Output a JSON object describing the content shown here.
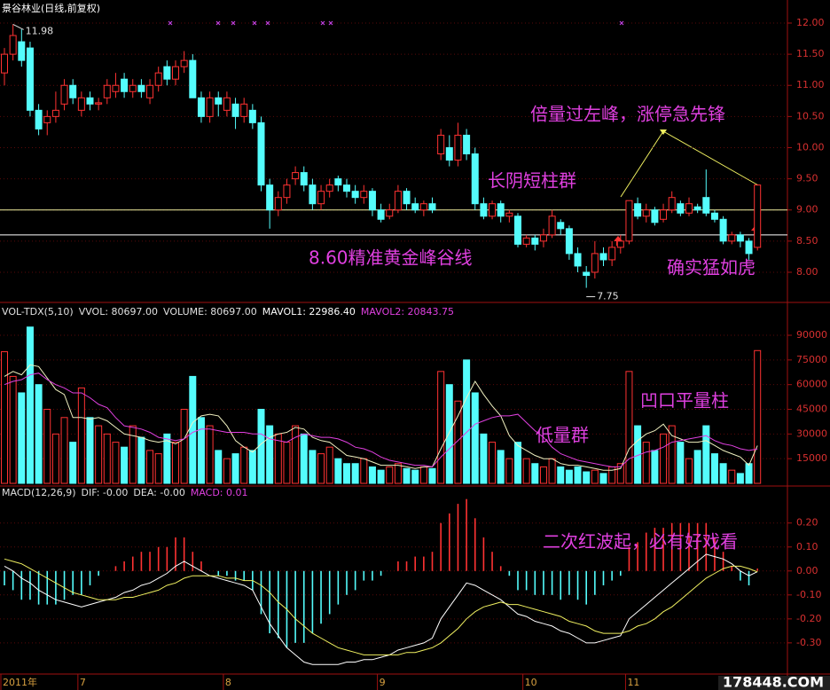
{
  "chart_data": [
    {
      "type": "candlestick",
      "title": "景谷林业(日线,前复权)",
      "title_color": "#ffffff",
      "up_color": "#ff3232",
      "down_color": "#54fcfc",
      "open": [
        11.2,
        11.5,
        11.7,
        11.6,
        10.6,
        10.4,
        10.5,
        10.7,
        11.0,
        10.6,
        10.8,
        10.7,
        10.8,
        10.9,
        11.1,
        10.9,
        11.0,
        10.8,
        11.0,
        11.3,
        11.1,
        11.3,
        11.4,
        10.8,
        10.5,
        10.8,
        10.6,
        10.7,
        10.5,
        10.6,
        10.4,
        9.4,
        9.0,
        9.2,
        9.5,
        9.6,
        9.4,
        9.1,
        9.3,
        9.5,
        9.4,
        9.3,
        9.2,
        9.3,
        9.0,
        8.9,
        9.0,
        9.3,
        9.1,
        9.0,
        9.1,
        9.9,
        10.0,
        9.8,
        10.2,
        9.9,
        9.1,
        8.9,
        9.1,
        8.9,
        8.9,
        8.45,
        8.55,
        8.5,
        8.6,
        8.8,
        8.7,
        8.3,
        8.0,
        8.0,
        8.3,
        8.2,
        8.4,
        8.5,
        9.1,
        8.9,
        9.0,
        8.85,
        9.0,
        9.1,
        8.95,
        9.05,
        9.2,
        8.95,
        8.85,
        8.5,
        8.6,
        8.5,
        8.4
      ],
      "high": [
        11.6,
        11.98,
        11.9,
        11.7,
        10.7,
        10.6,
        10.9,
        11.1,
        11.1,
        10.9,
        10.9,
        10.8,
        11.1,
        11.2,
        11.2,
        11.1,
        11.1,
        11.1,
        11.3,
        11.4,
        11.4,
        11.55,
        11.5,
        10.9,
        10.9,
        10.9,
        10.9,
        10.8,
        10.8,
        10.7,
        10.5,
        9.5,
        9.3,
        9.5,
        9.7,
        9.7,
        9.5,
        9.4,
        9.5,
        9.55,
        9.5,
        9.4,
        9.4,
        9.35,
        9.1,
        9.1,
        9.4,
        9.35,
        9.2,
        9.15,
        9.2,
        10.3,
        10.2,
        10.4,
        10.3,
        10.0,
        9.2,
        9.15,
        9.15,
        9.0,
        8.95,
        8.6,
        8.6,
        8.7,
        9.0,
        8.85,
        8.75,
        8.4,
        8.1,
        8.5,
        8.4,
        8.5,
        8.6,
        9.15,
        9.2,
        9.1,
        9.05,
        9.1,
        9.3,
        9.15,
        9.2,
        9.1,
        9.65,
        9.0,
        8.9,
        8.65,
        8.65,
        8.55,
        9.4
      ],
      "low": [
        11.0,
        11.4,
        11.3,
        10.5,
        10.2,
        10.2,
        10.4,
        10.6,
        10.7,
        10.5,
        10.6,
        10.6,
        10.7,
        10.8,
        10.8,
        10.8,
        10.8,
        10.7,
        10.9,
        11.0,
        11.0,
        11.2,
        10.8,
        10.4,
        10.4,
        10.5,
        10.5,
        10.3,
        10.4,
        10.3,
        9.3,
        8.7,
        8.9,
        9.1,
        9.4,
        9.3,
        9.0,
        9.0,
        9.2,
        9.3,
        9.2,
        9.1,
        9.1,
        8.9,
        8.8,
        8.85,
        8.95,
        9.0,
        8.95,
        8.9,
        8.95,
        9.8,
        9.7,
        9.7,
        9.8,
        9.0,
        8.85,
        8.85,
        8.8,
        8.8,
        8.4,
        8.4,
        8.35,
        8.4,
        8.55,
        8.6,
        8.2,
        8.0,
        7.75,
        7.9,
        8.1,
        8.1,
        8.3,
        8.45,
        8.85,
        8.8,
        8.75,
        8.8,
        8.95,
        8.9,
        8.9,
        8.95,
        8.9,
        8.8,
        8.45,
        8.45,
        8.4,
        8.2,
        8.35
      ],
      "close": [
        11.5,
        11.8,
        11.4,
        10.6,
        10.3,
        10.5,
        10.6,
        11.0,
        10.8,
        10.8,
        10.7,
        10.72,
        11.0,
        11.0,
        10.9,
        11.0,
        10.9,
        11.0,
        11.2,
        11.1,
        11.3,
        11.4,
        10.8,
        10.5,
        10.8,
        10.7,
        10.8,
        10.5,
        10.7,
        10.4,
        9.4,
        9.0,
        9.2,
        9.4,
        9.6,
        9.4,
        9.1,
        9.3,
        9.4,
        9.4,
        9.3,
        9.2,
        9.3,
        9.0,
        8.85,
        9.0,
        9.3,
        9.1,
        9.0,
        9.1,
        9.0,
        10.2,
        9.8,
        10.2,
        9.9,
        9.1,
        8.9,
        9.1,
        8.9,
        8.95,
        8.45,
        8.55,
        8.45,
        8.6,
        8.9,
        8.7,
        8.3,
        8.1,
        7.95,
        8.3,
        8.2,
        8.4,
        8.5,
        9.15,
        8.9,
        9.0,
        8.8,
        9.0,
        9.2,
        8.95,
        9.1,
        9.0,
        8.95,
        8.85,
        8.5,
        8.6,
        8.5,
        8.3,
        9.4
      ],
      "ylim": [
        7.53,
        12.37
      ],
      "yticks": [
        {
          "value": 8,
          "label": "8.00"
        },
        {
          "value": 8.5,
          "label": "8.50"
        },
        {
          "value": 9,
          "label": "9.00"
        },
        {
          "value": 9.5,
          "label": "9.50"
        },
        {
          "value": 10,
          "label": "10.00"
        },
        {
          "value": 10.5,
          "label": "10.50"
        },
        {
          "value": 11,
          "label": "11.00"
        },
        {
          "value": 11.5,
          "label": "11.50"
        },
        {
          "value": 12,
          "label": "12.00"
        }
      ],
      "hlines": [
        {
          "value": 9,
          "color": "#f0f0a0"
        },
        {
          "value": 8.6,
          "color": "#ffffff"
        }
      ],
      "annotations": [
        "倍量过左峰，涨停急先锋",
        "长阴短柱群",
        "8.60精准黄金峰谷线",
        "确实猛如虎"
      ]
    },
    {
      "type": "bar",
      "header": [
        {
          "text": "VOL-TDX(5,10)",
          "color": "#e0e0e0"
        },
        {
          "text": "VVOL: 80697.00",
          "color": "#e0e0e0"
        },
        {
          "text": "VOLUME: 80697.00",
          "color": "#e0e0e0"
        },
        {
          "text": "MAVOL1: 22986.40",
          "color": "#ffffff"
        },
        {
          "text": "MAVOL2: 20843.75",
          "color": "#e040e0"
        }
      ],
      "values": [
        80000,
        65000,
        55000,
        95000,
        60000,
        45000,
        30000,
        40000,
        25000,
        58000,
        40000,
        35000,
        30000,
        25000,
        22000,
        35000,
        28000,
        20000,
        18000,
        30000,
        25000,
        45000,
        65000,
        40000,
        35000,
        20000,
        15000,
        18000,
        22000,
        20000,
        45000,
        35000,
        30000,
        25000,
        35000,
        30000,
        20000,
        18000,
        22000,
        15000,
        12000,
        12000,
        15000,
        10000,
        8000,
        10000,
        12000,
        9000,
        8000,
        10000,
        9000,
        68000,
        60000,
        50000,
        75000,
        55000,
        30000,
        25000,
        20000,
        15000,
        25000,
        15000,
        12000,
        10000,
        15000,
        10000,
        8000,
        10000,
        7000,
        8000,
        6000,
        10000,
        12000,
        68000,
        35000,
        25000,
        20000,
        30000,
        35000,
        25000,
        15000,
        20000,
        35000,
        18000,
        12000,
        8000,
        6000,
        12000,
        80697
      ],
      "series": [
        {
          "color": "#f0f0c0",
          "values": [
            65000,
            68000,
            66000,
            72000,
            71000,
            64000,
            57000,
            54000,
            40000,
            40000,
            39000,
            40000,
            38000,
            34000,
            30000,
            29000,
            28000,
            26000,
            25000,
            26000,
            24000,
            27000,
            37000,
            41000,
            42000,
            41000,
            35000,
            26000,
            22000,
            19000,
            24000,
            28000,
            30000,
            31000,
            34000,
            33000,
            28000,
            26000,
            25000,
            21000,
            17000,
            16000,
            15000,
            13000,
            11000,
            11000,
            11000,
            10000,
            9000,
            10000,
            10000,
            21000,
            31000,
            41000,
            52000,
            62000,
            54000,
            47000,
            41000,
            29000,
            23000,
            20000,
            17000,
            15000,
            15000,
            12000,
            11000,
            11000,
            10000,
            9000,
            8000,
            8000,
            9000,
            21000,
            26000,
            30000,
            32000,
            36000,
            29000,
            27000,
            25000,
            25000,
            26000,
            23000,
            20000,
            18000,
            16000,
            11000,
            22986.4
          ]
        },
        {
          "color": "#e040e0",
          "values": [
            60000,
            62000,
            63000,
            66000,
            67000,
            63000,
            60000,
            58000,
            55000,
            55000,
            52000,
            48000,
            46000,
            40000,
            35000,
            34000,
            33000,
            31000,
            28000,
            27000,
            26000,
            27000,
            31000,
            33000,
            33000,
            32000,
            31000,
            31000,
            31000,
            30000,
            30000,
            27000,
            26000,
            25000,
            28000,
            30000,
            29000,
            28000,
            28000,
            27000,
            25000,
            22000,
            21000,
            19000,
            16000,
            14000,
            13000,
            12000,
            11000,
            11000,
            10000,
            16000,
            21000,
            26000,
            31000,
            36000,
            38000,
            40000,
            41000,
            41000,
            42000,
            37000,
            32000,
            28000,
            22000,
            18000,
            16000,
            14000,
            13000,
            12000,
            11000,
            10000,
            10000,
            15000,
            17000,
            19000,
            20000,
            22000,
            25000,
            26000,
            27000,
            28000,
            29000,
            26000,
            24000,
            23000,
            21000,
            20000,
            20843.75
          ]
        }
      ],
      "ylim": [
        0,
        107800
      ],
      "yticks": [
        15000,
        30000,
        45000,
        60000,
        75000,
        90000
      ],
      "annotations": [
        "低量群",
        "凹口平量柱"
      ]
    },
    {
      "type": "macd",
      "header": [
        {
          "text": "MACD(12,26,9)",
          "color": "#e0e0e0"
        },
        {
          "text": "DIF: -0.00",
          "color": "#e0e0e0"
        },
        {
          "text": "DEA: -0.00",
          "color": "#e0e0e0"
        },
        {
          "text": "MACD: 0.01",
          "color": "#e040e0"
        }
      ],
      "values": [
        -0.06,
        -0.08,
        -0.12,
        -0.12,
        -0.14,
        -0.14,
        -0.14,
        -0.12,
        -0.1,
        -0.1,
        -0.06,
        -0.02,
        0.0,
        0.02,
        0.04,
        0.06,
        0.08,
        0.08,
        0.1,
        0.1,
        0.14,
        0.14,
        0.08,
        0.04,
        0.0,
        -0.02,
        -0.02,
        -0.04,
        -0.04,
        -0.08,
        -0.18,
        -0.26,
        -0.28,
        -0.32,
        -0.3,
        -0.3,
        -0.26,
        -0.22,
        -0.18,
        -0.14,
        -0.1,
        -0.08,
        -0.04,
        -0.04,
        -0.02,
        0.0,
        0.04,
        0.04,
        0.06,
        0.06,
        0.08,
        0.2,
        0.24,
        0.28,
        0.3,
        0.22,
        0.14,
        0.08,
        0.02,
        -0.02,
        -0.08,
        -0.08,
        -0.1,
        -0.1,
        -0.1,
        -0.12,
        -0.1,
        -0.12,
        -0.14,
        -0.1,
        -0.06,
        -0.04,
        -0.02,
        0.1,
        0.12,
        0.16,
        0.18,
        0.18,
        0.2,
        0.2,
        0.2,
        0.2,
        0.2,
        0.14,
        0.08,
        0.02,
        -0.04,
        -0.06,
        0.01
      ],
      "series": [
        {
          "color": "#ffffff",
          "values": [
            0.02,
            0.0,
            -0.03,
            -0.05,
            -0.08,
            -0.1,
            -0.12,
            -0.13,
            -0.14,
            -0.15,
            -0.14,
            -0.13,
            -0.12,
            -0.11,
            -0.09,
            -0.08,
            -0.06,
            -0.05,
            -0.03,
            -0.01,
            0.02,
            0.04,
            0.02,
            0.0,
            -0.02,
            -0.03,
            -0.04,
            -0.05,
            -0.06,
            -0.08,
            -0.15,
            -0.22,
            -0.27,
            -0.32,
            -0.35,
            -0.38,
            -0.39,
            -0.39,
            -0.39,
            -0.39,
            -0.38,
            -0.38,
            -0.37,
            -0.37,
            -0.36,
            -0.35,
            -0.33,
            -0.32,
            -0.31,
            -0.3,
            -0.28,
            -0.2,
            -0.15,
            -0.1,
            -0.05,
            -0.06,
            -0.08,
            -0.1,
            -0.12,
            -0.15,
            -0.18,
            -0.19,
            -0.21,
            -0.22,
            -0.23,
            -0.25,
            -0.26,
            -0.28,
            -0.3,
            -0.3,
            -0.29,
            -0.28,
            -0.27,
            -0.2,
            -0.17,
            -0.14,
            -0.11,
            -0.08,
            -0.05,
            -0.02,
            0.01,
            0.04,
            0.07,
            0.06,
            0.05,
            0.03,
            0.0,
            -0.02,
            -0.003
          ]
        },
        {
          "color": "#f0f060",
          "values": [
            0.05,
            0.04,
            0.03,
            0.01,
            -0.01,
            -0.03,
            -0.05,
            -0.07,
            -0.09,
            -0.1,
            -0.11,
            -0.12,
            -0.12,
            -0.12,
            -0.11,
            -0.11,
            -0.1,
            -0.09,
            -0.08,
            -0.06,
            -0.05,
            -0.03,
            -0.02,
            -0.02,
            -0.02,
            -0.02,
            -0.03,
            -0.03,
            -0.04,
            -0.04,
            -0.06,
            -0.09,
            -0.13,
            -0.16,
            -0.2,
            -0.23,
            -0.26,
            -0.28,
            -0.3,
            -0.32,
            -0.33,
            -0.34,
            -0.35,
            -0.35,
            -0.35,
            -0.35,
            -0.35,
            -0.34,
            -0.34,
            -0.33,
            -0.32,
            -0.3,
            -0.27,
            -0.24,
            -0.2,
            -0.17,
            -0.15,
            -0.14,
            -0.13,
            -0.14,
            -0.14,
            -0.15,
            -0.16,
            -0.17,
            -0.18,
            -0.19,
            -0.21,
            -0.22,
            -0.23,
            -0.25,
            -0.26,
            -0.26,
            -0.26,
            -0.25,
            -0.23,
            -0.22,
            -0.2,
            -0.17,
            -0.15,
            -0.12,
            -0.09,
            -0.06,
            -0.03,
            -0.01,
            0.01,
            0.02,
            0.02,
            0.01,
            -0.004
          ]
        }
      ],
      "ylim": [
        -0.43,
        0.31
      ],
      "yticks": [
        {
          "value": 0.2,
          "label": "0.20"
        },
        {
          "value": 0.1,
          "label": "0.10"
        },
        {
          "value": 0,
          "label": "0.00"
        },
        {
          "value": -0.1,
          "label": "-0.10"
        },
        {
          "value": -0.2,
          "label": "-0.20"
        },
        {
          "value": -0.3,
          "label": "-0.30"
        }
      ],
      "categories": [
        "2011年",
        null,
        null,
        null,
        null,
        null,
        null,
        null,
        null,
        "7",
        null,
        null,
        null,
        null,
        null,
        null,
        null,
        null,
        null,
        null,
        null,
        null,
        null,
        null,
        null,
        null,
        "8",
        null,
        null,
        null,
        null,
        null,
        null,
        null,
        null,
        null,
        null,
        null,
        null,
        null,
        null,
        null,
        null,
        null,
        "9",
        null,
        null,
        null,
        null,
        null,
        null,
        null,
        null,
        null,
        null,
        null,
        null,
        null,
        null,
        null,
        null,
        "10",
        null,
        null,
        null,
        null,
        null,
        null,
        null,
        null,
        null,
        null,
        null,
        "11",
        null,
        null,
        null,
        null,
        null,
        null,
        null,
        null,
        null,
        null,
        null,
        null,
        null,
        null,
        null
      ],
      "annotations": [
        "二次红波起，必有好戏看"
      ]
    }
  ],
  "watermark": "178448.COM"
}
